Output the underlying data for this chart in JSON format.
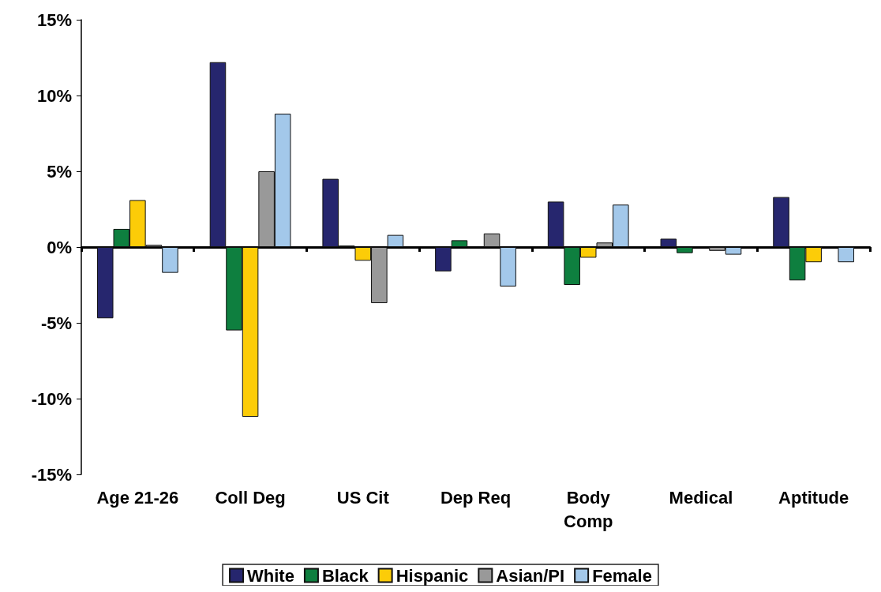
{
  "chart_data": {
    "type": "bar",
    "categories": [
      "Age 21-26",
      "Coll Deg",
      "US Cit",
      "Dep Req",
      "Body\nComp",
      "Medical",
      "Aptitude"
    ],
    "series": [
      {
        "name": "White",
        "color": "#26266e",
        "values": [
          -4.7,
          12.2,
          4.5,
          -1.6,
          3.0,
          0.55,
          3.3
        ]
      },
      {
        "name": "Black",
        "color": "#0e7f3f",
        "values": [
          1.2,
          -5.5,
          0.1,
          0.45,
          -2.5,
          -0.4,
          -2.2
        ]
      },
      {
        "name": "Hispanic",
        "color": "#fccc08",
        "values": [
          3.1,
          -11.2,
          -0.9,
          null,
          -0.7,
          null,
          -1.0
        ]
      },
      {
        "name": "Asian/PI",
        "color": "#999999",
        "values": [
          0.15,
          5.0,
          -3.7,
          0.9,
          0.3,
          -0.25,
          null
        ]
      },
      {
        "name": "Female",
        "color": "#a3c8ea",
        "values": [
          -1.7,
          8.8,
          0.8,
          -2.6,
          2.8,
          -0.5,
          -1.0
        ]
      }
    ],
    "ylim": [
      -15,
      15
    ],
    "yticks": [
      {
        "value": -15,
        "label": "-15%"
      },
      {
        "value": -10,
        "label": "-10%"
      },
      {
        "value": -5,
        "label": "-5%"
      },
      {
        "value": 0,
        "label": "0%"
      },
      {
        "value": 5,
        "label": "5%"
      },
      {
        "value": 10,
        "label": "10%"
      },
      {
        "value": 15,
        "label": "15%"
      }
    ],
    "legend": "bottom"
  }
}
